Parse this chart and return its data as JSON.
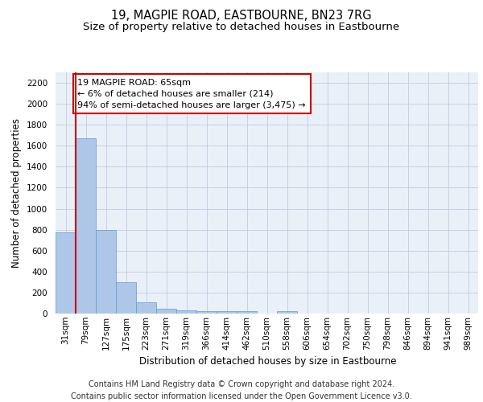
{
  "title1": "19, MAGPIE ROAD, EASTBOURNE, BN23 7RG",
  "title2": "Size of property relative to detached houses in Eastbourne",
  "xlabel": "Distribution of detached houses by size in Eastbourne",
  "ylabel": "Number of detached properties",
  "categories": [
    "31sqm",
    "79sqm",
    "127sqm",
    "175sqm",
    "223sqm",
    "271sqm",
    "319sqm",
    "366sqm",
    "414sqm",
    "462sqm",
    "510sqm",
    "558sqm",
    "606sqm",
    "654sqm",
    "702sqm",
    "750sqm",
    "798sqm",
    "846sqm",
    "894sqm",
    "941sqm",
    "989sqm"
  ],
  "values": [
    775,
    1675,
    795,
    300,
    110,
    45,
    30,
    25,
    20,
    20,
    0,
    20,
    0,
    0,
    0,
    0,
    0,
    0,
    0,
    0,
    0
  ],
  "bar_color": "#aec6e8",
  "bar_edge_color": "#5b9bd5",
  "annotation_text": "19 MAGPIE ROAD: 65sqm\n← 6% of detached houses are smaller (214)\n94% of semi-detached houses are larger (3,475) →",
  "annotation_box_color": "#ffffff",
  "annotation_box_edge": "#cc0000",
  "vline_color": "#cc0000",
  "ylim": [
    0,
    2300
  ],
  "yticks": [
    0,
    200,
    400,
    600,
    800,
    1000,
    1200,
    1400,
    1600,
    1800,
    2000,
    2200
  ],
  "footer1": "Contains HM Land Registry data © Crown copyright and database right 2024.",
  "footer2": "Contains public sector information licensed under the Open Government Licence v3.0.",
  "bg_color": "#eaf0f8",
  "title1_fontsize": 10.5,
  "title2_fontsize": 9.5,
  "axis_label_fontsize": 8.5,
  "tick_fontsize": 7.5,
  "annotation_fontsize": 8,
  "footer_fontsize": 7
}
